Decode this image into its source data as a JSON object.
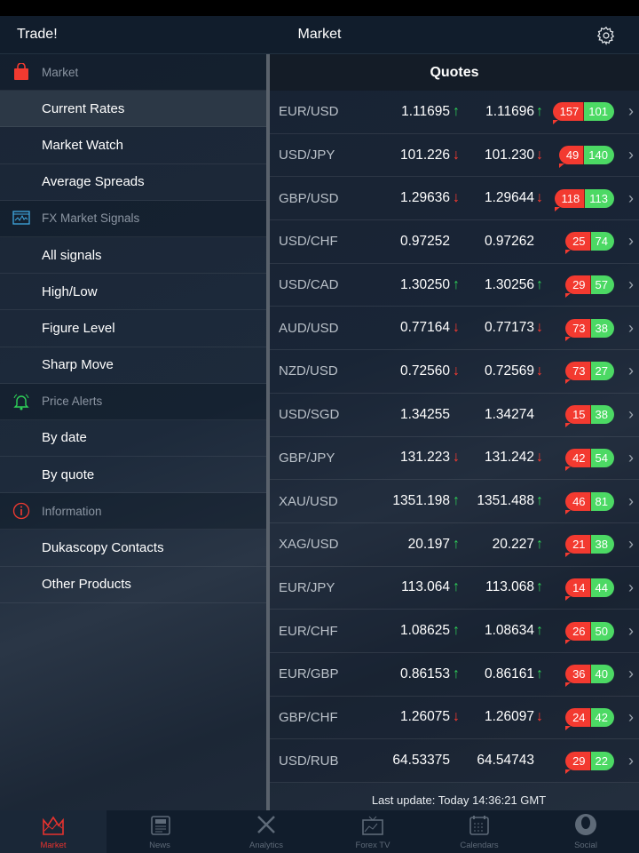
{
  "header": {
    "left": "Trade!",
    "title": "Market"
  },
  "sidebar": [
    {
      "type": "head",
      "label": "Market",
      "icon": "shopping-bag-icon"
    },
    {
      "type": "item",
      "label": "Current Rates",
      "active": true
    },
    {
      "type": "item",
      "label": "Market Watch"
    },
    {
      "type": "item",
      "label": "Average Spreads"
    },
    {
      "type": "head",
      "label": "FX Market Signals",
      "icon": "signals-icon"
    },
    {
      "type": "item",
      "label": "All signals"
    },
    {
      "type": "item",
      "label": "High/Low"
    },
    {
      "type": "item",
      "label": "Figure Level"
    },
    {
      "type": "item",
      "label": "Sharp Move"
    },
    {
      "type": "head",
      "label": "Price Alerts",
      "icon": "alarm-bell-icon"
    },
    {
      "type": "item",
      "label": "By date"
    },
    {
      "type": "item",
      "label": "By quote"
    },
    {
      "type": "head",
      "label": "Information",
      "icon": "info-icon"
    },
    {
      "type": "item",
      "label": "Dukascopy Contacts"
    },
    {
      "type": "item",
      "label": "Other Products"
    }
  ],
  "quotes": {
    "title": "Quotes",
    "rows": [
      {
        "pair": "EUR/USD",
        "bid": "1.11695",
        "ask": "1.11696",
        "dir": "up",
        "sell": "157",
        "buy": "101"
      },
      {
        "pair": "USD/JPY",
        "bid": "101.226",
        "ask": "101.230",
        "dir": "down",
        "sell": "49",
        "buy": "140"
      },
      {
        "pair": "GBP/USD",
        "bid": "1.29636",
        "ask": "1.29644",
        "dir": "down",
        "sell": "118",
        "buy": "113"
      },
      {
        "pair": "USD/CHF",
        "bid": "0.97252",
        "ask": "0.97262",
        "dir": "",
        "sell": "25",
        "buy": "74"
      },
      {
        "pair": "USD/CAD",
        "bid": "1.30250",
        "ask": "1.30256",
        "dir": "up",
        "sell": "29",
        "buy": "57"
      },
      {
        "pair": "AUD/USD",
        "bid": "0.77164",
        "ask": "0.77173",
        "dir": "down",
        "sell": "73",
        "buy": "38"
      },
      {
        "pair": "NZD/USD",
        "bid": "0.72560",
        "ask": "0.72569",
        "dir": "down",
        "sell": "73",
        "buy": "27"
      },
      {
        "pair": "USD/SGD",
        "bid": "1.34255",
        "ask": "1.34274",
        "dir": "",
        "sell": "15",
        "buy": "38"
      },
      {
        "pair": "GBP/JPY",
        "bid": "131.223",
        "ask": "131.242",
        "dir": "down",
        "sell": "42",
        "buy": "54"
      },
      {
        "pair": "XAU/USD",
        "bid": "1351.198",
        "ask": "1351.488",
        "dir": "up",
        "sell": "46",
        "buy": "81"
      },
      {
        "pair": "XAG/USD",
        "bid": "20.197",
        "ask": "20.227",
        "dir": "up",
        "sell": "21",
        "buy": "38"
      },
      {
        "pair": "EUR/JPY",
        "bid": "113.064",
        "ask": "113.068",
        "dir": "up",
        "sell": "14",
        "buy": "44"
      },
      {
        "pair": "EUR/CHF",
        "bid": "1.08625",
        "ask": "1.08634",
        "dir": "up",
        "sell": "26",
        "buy": "50"
      },
      {
        "pair": "EUR/GBP",
        "bid": "0.86153",
        "ask": "0.86161",
        "dir": "up",
        "sell": "36",
        "buy": "40"
      },
      {
        "pair": "GBP/CHF",
        "bid": "1.26075",
        "ask": "1.26097",
        "dir": "down",
        "sell": "24",
        "buy": "42"
      },
      {
        "pair": "USD/RUB",
        "bid": "64.53375",
        "ask": "64.54743",
        "dir": "",
        "sell": "29",
        "buy": "22"
      }
    ],
    "last_update": "Last update: Today 14:36:21 GMT"
  },
  "tabs": [
    {
      "label": "Market",
      "active": true
    },
    {
      "label": "News"
    },
    {
      "label": "Analytics"
    },
    {
      "label": "Forex TV"
    },
    {
      "label": "Calendars"
    },
    {
      "label": "Social"
    }
  ],
  "colors": {
    "accent": "#e8322e",
    "up": "#2ed158",
    "down": "#ff3b30",
    "sell": "#f33a30",
    "buy": "#4cd964"
  }
}
